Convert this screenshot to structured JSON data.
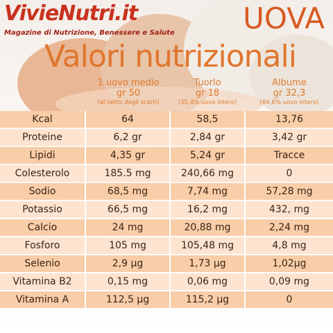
{
  "header": {
    "brand": "VivieNutri.it",
    "tagline": "Magazine di Nutrizione, Benessere e Salute",
    "product": "UOVA",
    "title": "Valori nutrizionali"
  },
  "table": {
    "columns": [
      [
        "1 uovo medio",
        "gr 50",
        "(al netto degli scarti)"
      ],
      [
        "Tuorlo",
        "gr 18",
        "(35,4% uovo intero)"
      ],
      [
        "Albume",
        "gr 32,3",
        "(64,6% uovo intero)"
      ]
    ],
    "rows": [
      [
        "Kcal",
        "64",
        "58,5",
        "13,76"
      ],
      [
        "Proteine",
        "6,2 gr",
        "2,84 gr",
        "3,42 gr"
      ],
      [
        "Lipidi",
        "4,35 gr",
        "5,24 gr",
        "Tracce"
      ],
      [
        "Colesterolo",
        "185.5 mg",
        "240,66 mg",
        "0"
      ],
      [
        "Sodio",
        "68,5 mg",
        "7,74 mg",
        "57,28 mg"
      ],
      [
        "Potassio",
        "66,5 mg",
        "16,2 mg",
        "432, mg"
      ],
      [
        "Calcio",
        "24 mg",
        "20,88 mg",
        "2,24 mg"
      ],
      [
        "Fosforo",
        "105 mg",
        "105,48 mg",
        "4,8 mg"
      ],
      [
        "Selenio",
        "2,9 µg",
        "1,73 µg",
        "1,02µg"
      ],
      [
        "Vitamina B2",
        "0,15 mg",
        "0,06 mg",
        "0,09 mg"
      ],
      [
        "Vitamina A",
        "112,5 µg",
        "115,2 µg",
        "0"
      ]
    ]
  }
}
